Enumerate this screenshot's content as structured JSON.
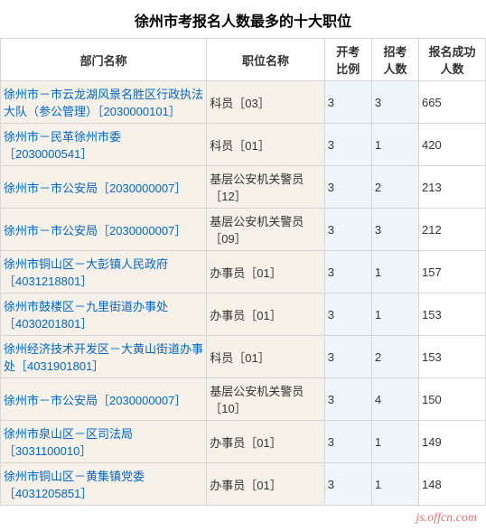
{
  "title": "徐州市考报名人数最多的十大职位",
  "columns": {
    "dept": "部门名称",
    "position": "职位名称",
    "ratio_line1": "开考",
    "ratio_line2": "比例",
    "recruit_line1": "招考",
    "recruit_line2": "人数",
    "success_line1": "报名成功",
    "success_line2": "人数"
  },
  "rows": [
    {
      "dept": "徐州市－市云龙湖风景名胜区行政执法大队（参公管理）［2030000101］",
      "position": "科员［03］",
      "ratio": "3",
      "recruit": "3",
      "success": "665"
    },
    {
      "dept": "徐州市－民革徐州市委［2030000541］",
      "position": "科员［01］",
      "ratio": "3",
      "recruit": "1",
      "success": "420"
    },
    {
      "dept": "徐州市－市公安局［2030000007］",
      "position": "基层公安机关警员［12］",
      "ratio": "3",
      "recruit": "2",
      "success": "213"
    },
    {
      "dept": "徐州市－市公安局［2030000007］",
      "position": "基层公安机关警员［09］",
      "ratio": "3",
      "recruit": "3",
      "success": "212"
    },
    {
      "dept": "徐州市铜山区－大彭镇人民政府［4031218801］",
      "position": "办事员［01］",
      "ratio": "3",
      "recruit": "1",
      "success": "157"
    },
    {
      "dept": "徐州市鼓楼区－九里街道办事处［4030201801］",
      "position": "办事员［01］",
      "ratio": "3",
      "recruit": "1",
      "success": "153"
    },
    {
      "dept": "徐州经济技术开发区－大黄山街道办事处［4031901801］",
      "position": "科员［01］",
      "ratio": "3",
      "recruit": "2",
      "success": "153"
    },
    {
      "dept": "徐州市－市公安局［2030000007］",
      "position": "基层公安机关警员［10］",
      "ratio": "3",
      "recruit": "4",
      "success": "150"
    },
    {
      "dept": "徐州市泉山区－区司法局［3031100010］",
      "position": "办事员［01］",
      "ratio": "3",
      "recruit": "1",
      "success": "149"
    },
    {
      "dept": "徐州市铜山区－黄集镇党委［4031205851］",
      "position": "办事员［01］",
      "ratio": "3",
      "recruit": "1",
      "success": "148"
    }
  ],
  "watermark": "js.offcn.com",
  "colors": {
    "link": "#0066cc",
    "bg_left": "#f5f1e8",
    "bg_mid": "#eff6fa",
    "border": "#d6d6d6",
    "watermark": "#e77471"
  }
}
